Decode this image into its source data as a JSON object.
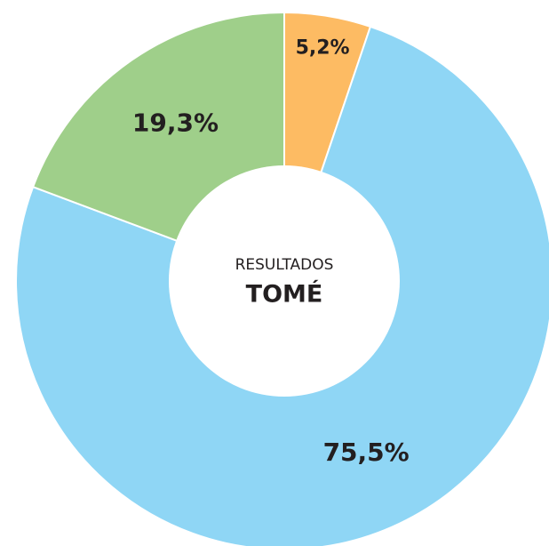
{
  "chart_data": {
    "type": "donut",
    "values": [
      5.2,
      75.5,
      19.3
    ],
    "value_labels": [
      "5,2%",
      "75,5%",
      "19,3%"
    ],
    "colors": [
      "#fdbb63",
      "#8fd6f5",
      "#9fcf8a"
    ],
    "center_subtitle": "RESULTADOS",
    "center_title": "TOMÉ"
  }
}
